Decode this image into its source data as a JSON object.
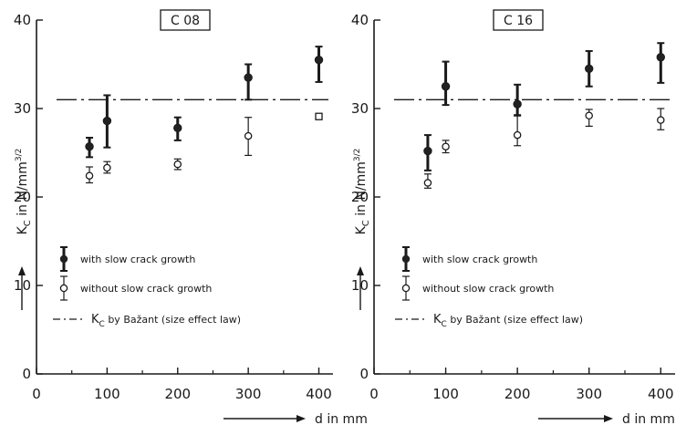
{
  "chart_data": [
    {
      "type": "scatter",
      "title": "C 08",
      "xlabel": "d in mm",
      "ylabel": "K_C in N/mm^3/2",
      "xlim": [
        0,
        420
      ],
      "ylim": [
        0,
        40
      ],
      "xticks": [
        0,
        100,
        200,
        300,
        400
      ],
      "yticks": [
        0,
        10,
        20,
        30,
        40
      ],
      "reference_line": {
        "y": 31,
        "label": "K_C by Bažant (size effect law)"
      },
      "series": [
        {
          "name": "with slow crack growth",
          "marker": "filled",
          "points": [
            {
              "x": 75,
              "y": 25.7,
              "low": 24.5,
              "high": 26.7
            },
            {
              "x": 100,
              "y": 28.6,
              "low": 25.6,
              "high": 31.5
            },
            {
              "x": 200,
              "y": 27.8,
              "low": 26.4,
              "high": 29.0
            },
            {
              "x": 300,
              "y": 33.5,
              "low": 31.0,
              "high": 35.0
            },
            {
              "x": 400,
              "y": 35.5,
              "low": 33.0,
              "high": 37.0
            }
          ]
        },
        {
          "name": "without slow crack growth",
          "marker": "open",
          "points": [
            {
              "x": 75,
              "y": 22.4,
              "low": 21.6,
              "high": 23.4
            },
            {
              "x": 100,
              "y": 23.3,
              "low": 22.7,
              "high": 24.0
            },
            {
              "x": 200,
              "y": 23.7,
              "low": 23.1,
              "high": 24.3
            },
            {
              "x": 300,
              "y": 26.9,
              "low": 24.7,
              "high": 29.0
            },
            {
              "x": 400,
              "y": 29.1,
              "low": null,
              "high": null,
              "square": true
            }
          ]
        }
      ],
      "legend": {
        "position": "bottom-left",
        "items": [
          "with slow crack growth",
          "without slow crack growth",
          "K_C by Bažant (size effect law)"
        ]
      }
    },
    {
      "type": "scatter",
      "title": "C 16",
      "xlabel": "d in mm",
      "ylabel": "K_C in N/mm^3/2",
      "xlim": [
        0,
        420
      ],
      "ylim": [
        0,
        40
      ],
      "xticks": [
        0,
        100,
        200,
        300,
        400
      ],
      "yticks": [
        0,
        10,
        20,
        30,
        40
      ],
      "reference_line": {
        "y": 31,
        "label": "K_C by Bažant (size effect law)"
      },
      "series": [
        {
          "name": "with slow crack growth",
          "marker": "filled",
          "points": [
            {
              "x": 75,
              "y": 25.2,
              "low": 23.0,
              "high": 27.0
            },
            {
              "x": 100,
              "y": 32.5,
              "low": 30.4,
              "high": 35.3
            },
            {
              "x": 200,
              "y": 30.5,
              "low": 29.2,
              "high": 32.7
            },
            {
              "x": 300,
              "y": 34.5,
              "low": 32.5,
              "high": 36.5
            },
            {
              "x": 400,
              "y": 35.8,
              "low": 32.9,
              "high": 37.4
            }
          ]
        },
        {
          "name": "without slow crack growth",
          "marker": "open",
          "points": [
            {
              "x": 75,
              "y": 21.6,
              "low": 21.0,
              "high": 22.6
            },
            {
              "x": 100,
              "y": 25.7,
              "low": 25.0,
              "high": 26.4
            },
            {
              "x": 200,
              "y": 27.0,
              "low": 25.8,
              "high": 29.3
            },
            {
              "x": 300,
              "y": 29.2,
              "low": 28.0,
              "high": 29.9
            },
            {
              "x": 400,
              "y": 28.7,
              "low": 27.6,
              "high": 30.0
            }
          ]
        }
      ],
      "legend": {
        "position": "bottom-left",
        "items": [
          "with slow crack growth",
          "without slow crack growth",
          "K_C by Bažant (size effect law)"
        ]
      }
    }
  ]
}
